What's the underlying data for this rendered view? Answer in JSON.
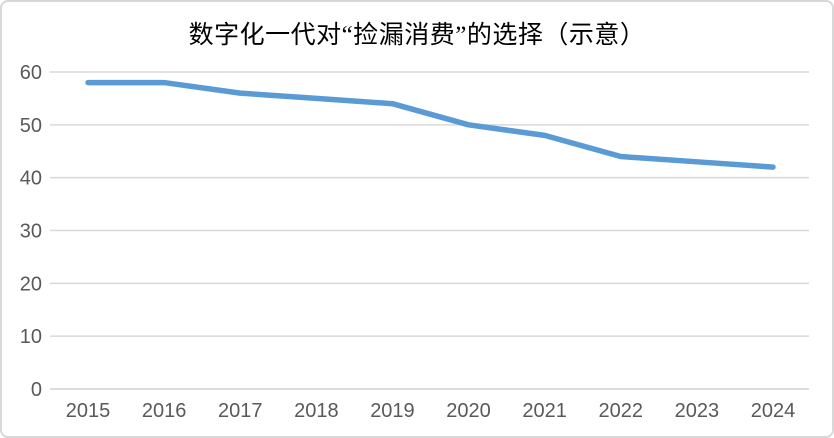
{
  "chart_data": {
    "type": "line",
    "title": "数字化一代对“捡漏消费”的选择（示意）",
    "categories": [
      "2015",
      "2016",
      "2017",
      "2018",
      "2019",
      "2020",
      "2021",
      "2022",
      "2023",
      "2024"
    ],
    "series": [
      {
        "values": [
          58,
          58,
          56,
          55,
          54,
          50,
          48,
          44,
          43,
          42
        ]
      }
    ],
    "xlabel": "",
    "ylabel": "",
    "ylim": [
      0,
      60
    ],
    "yticks": [
      0,
      10,
      20,
      30,
      40,
      50,
      60
    ],
    "grid": true,
    "legend": "none",
    "colors": {
      "line": "#5B9BD5",
      "grid": "#D9D9D9",
      "axis_line": "#D0D0D0",
      "axis_labels": "#595959",
      "title": "#000000",
      "background": "#FFFFFF",
      "frame_border": "#D8D8D8"
    }
  }
}
